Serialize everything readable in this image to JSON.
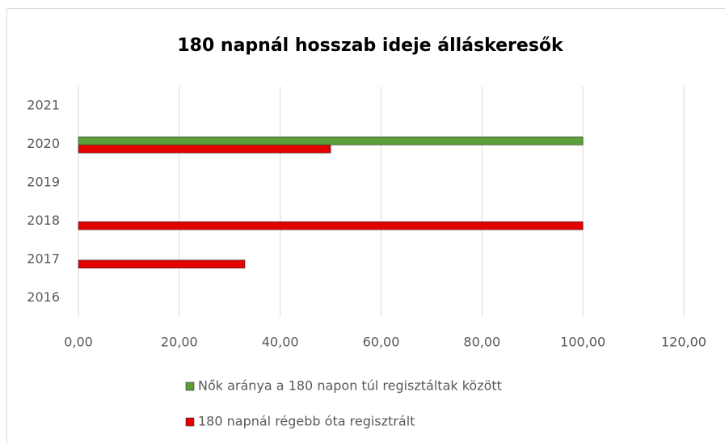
{
  "chart_data": {
    "type": "hbar",
    "title": "180 napnál hosszab ideje álláskeresők",
    "categories": [
      "2016",
      "2017",
      "2018",
      "2019",
      "2020",
      "2021"
    ],
    "series": [
      {
        "name": "Nők aránya a 180 napon túl regisztáltak között",
        "color": "#5b9f3a",
        "values": [
          null,
          null,
          null,
          null,
          100,
          null
        ]
      },
      {
        "name": "180 napnál régebb óta regisztrált",
        "color": "#e30000",
        "values": [
          null,
          33,
          100,
          null,
          50,
          null
        ]
      }
    ],
    "xlim": [
      0,
      120
    ],
    "xticks": [
      {
        "value": 0,
        "label": "0,00"
      },
      {
        "value": 20,
        "label": "20,00"
      },
      {
        "value": 40,
        "label": "40,00"
      },
      {
        "value": 60,
        "label": "60,00"
      },
      {
        "value": 80,
        "label": "80,00"
      },
      {
        "value": 100,
        "label": "100,00"
      },
      {
        "value": 120,
        "label": "120,00"
      }
    ],
    "grid": true,
    "legend": "bottom"
  }
}
